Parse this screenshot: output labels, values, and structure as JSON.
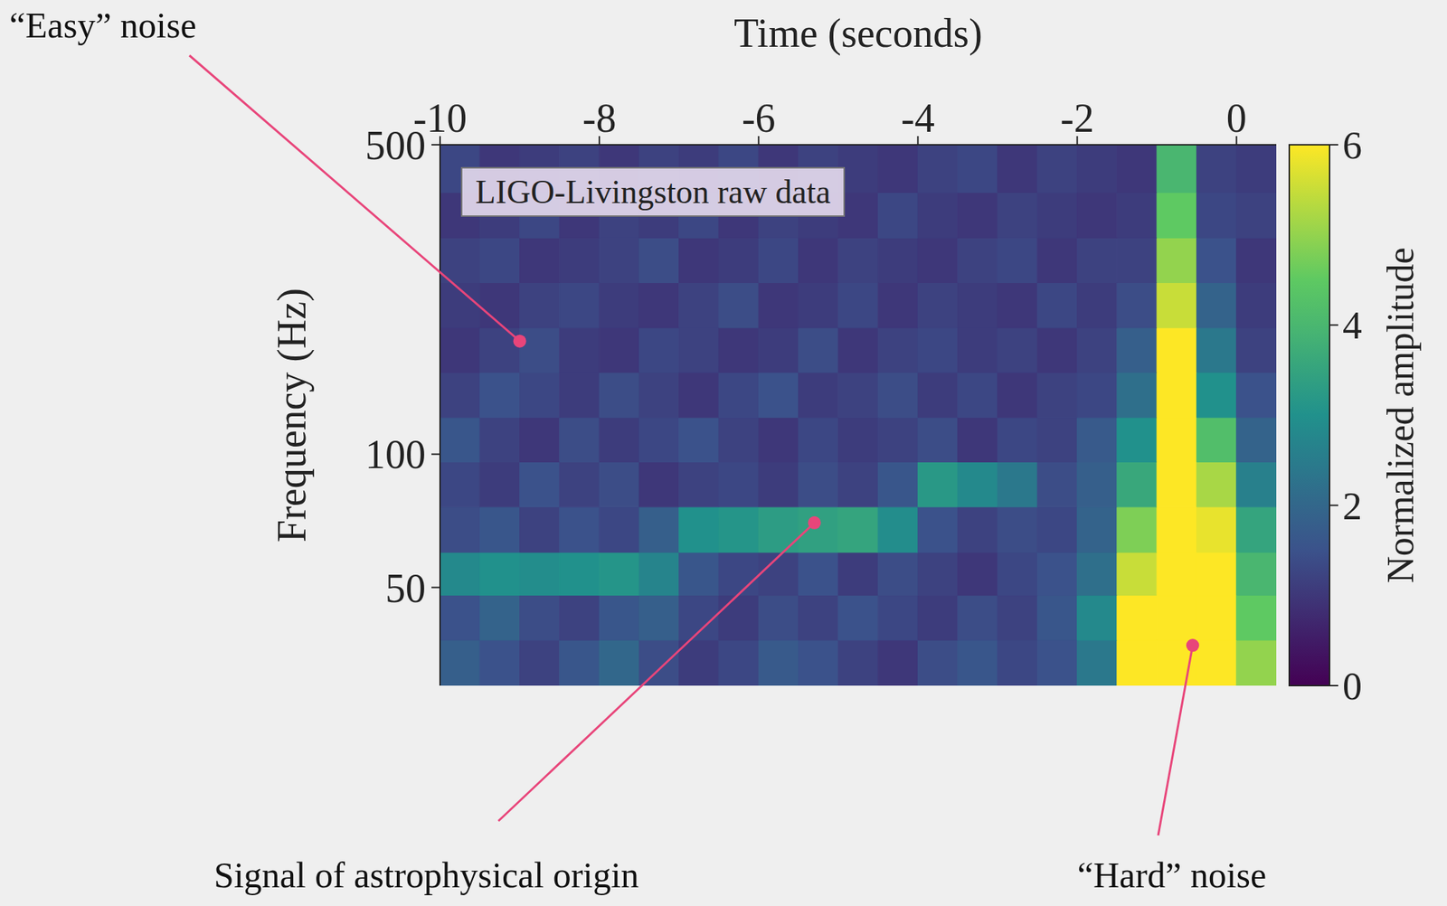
{
  "chart_data": {
    "type": "heatmap",
    "title": "LIGO-Livingston raw data",
    "x_label": "Time (seconds)",
    "y_label": "Frequency (Hz)",
    "log": "y",
    "xlim": [
      -10,
      0.5
    ],
    "ylim": [
      30,
      500
    ],
    "xticks": [
      -10,
      -8,
      -6,
      -4,
      -2,
      0
    ],
    "yticks": [
      50,
      100,
      500
    ],
    "x_bins": [
      -10,
      -9.5,
      -9,
      -8.5,
      -8,
      -7.5,
      -7,
      -6.5,
      -6,
      -5.5,
      -5,
      -4.5,
      -4,
      -3.5,
      -3,
      -2.5,
      -2,
      -1.5,
      -1,
      -0.5,
      0,
      0.5
    ],
    "y_bins": [
      30,
      38,
      48,
      60,
      76,
      96,
      121,
      153,
      193,
      244,
      308,
      390,
      500
    ],
    "cells": [
      [
        1.8,
        1.5,
        1.2,
        1.6,
        2.0,
        1.4,
        1.1,
        1.3,
        1.7,
        1.5,
        1.2,
        1.0,
        1.4,
        1.6,
        1.3,
        1.5,
        2.4,
        6,
        6,
        6,
        5
      ],
      [
        1.5,
        1.9,
        1.4,
        1.2,
        1.6,
        1.8,
        1.3,
        1.1,
        1.4,
        1.2,
        1.5,
        1.3,
        1.1,
        1.4,
        1.2,
        1.6,
        2.8,
        6,
        6,
        6,
        4.5
      ],
      [
        2.8,
        3.0,
        2.9,
        3.0,
        3.1,
        2.7,
        1.6,
        1.3,
        1.2,
        1.5,
        1.1,
        1.4,
        1.2,
        1.0,
        1.3,
        1.5,
        2.2,
        5.5,
        6,
        6,
        4
      ],
      [
        1.4,
        1.6,
        1.2,
        1.5,
        1.3,
        1.8,
        3.0,
        3.1,
        3.3,
        3.4,
        3.5,
        2.9,
        1.5,
        1.2,
        1.4,
        1.3,
        1.9,
        4.8,
        6,
        5.8,
        3.5
      ],
      [
        1.3,
        1.1,
        1.5,
        1.2,
        1.4,
        1.0,
        1.2,
        1.3,
        1.1,
        1.4,
        1.2,
        1.6,
        3.2,
        2.8,
        2.4,
        1.4,
        1.8,
        3.6,
        6,
        5.2,
        2.6
      ],
      [
        1.6,
        1.2,
        1.0,
        1.4,
        1.1,
        1.3,
        1.5,
        1.2,
        1.0,
        1.3,
        1.1,
        1.2,
        1.4,
        1.0,
        1.3,
        1.2,
        1.7,
        3.0,
        6,
        4.2,
        1.9
      ],
      [
        1.2,
        1.5,
        1.3,
        1.1,
        1.4,
        1.2,
        1.0,
        1.3,
        1.5,
        1.1,
        1.2,
        1.4,
        1.1,
        1.3,
        1.0,
        1.2,
        1.3,
        2.2,
        6,
        3.0,
        1.5
      ],
      [
        1.0,
        1.2,
        1.4,
        1.1,
        1.0,
        1.3,
        1.2,
        1.0,
        1.1,
        1.4,
        1.0,
        1.2,
        1.3,
        1.1,
        1.2,
        1.0,
        1.2,
        1.8,
        6,
        2.4,
        1.2
      ],
      [
        1.1,
        1.0,
        1.2,
        1.3,
        1.1,
        1.0,
        1.2,
        1.4,
        1.0,
        1.1,
        1.3,
        1.0,
        1.2,
        1.1,
        1.0,
        1.3,
        1.1,
        1.4,
        5.5,
        1.9,
        1.1
      ],
      [
        1.2,
        1.3,
        1.0,
        1.1,
        1.2,
        1.4,
        1.0,
        1.1,
        1.3,
        1.0,
        1.2,
        1.1,
        1.0,
        1.2,
        1.3,
        1.0,
        1.2,
        1.2,
        5,
        1.5,
        1.0
      ],
      [
        1.0,
        1.1,
        1.3,
        1.0,
        1.2,
        1.1,
        1.3,
        1.0,
        1.2,
        1.1,
        1.0,
        1.3,
        1.1,
        1.0,
        1.2,
        1.1,
        1.0,
        1.1,
        4.5,
        1.3,
        1.2
      ],
      [
        1.3,
        1.0,
        1.1,
        1.2,
        1.0,
        1.2,
        1.1,
        1.3,
        1.0,
        1.2,
        1.1,
        1.0,
        1.2,
        1.3,
        1.0,
        1.2,
        1.1,
        1.0,
        4,
        1.2,
        1.1
      ]
    ],
    "colorbar": {
      "label": "Normalized amplitude",
      "range": [
        0,
        6
      ],
      "ticks": [
        0,
        2,
        4,
        6
      ]
    },
    "annotations": [
      {
        "text": "“Easy” noise",
        "x": -9,
        "y": 180
      },
      {
        "text": "Signal of astrophysical origin",
        "x": -5.3,
        "y": 70
      },
      {
        "text": "“Hard” noise",
        "x": -0.55,
        "y": 37
      }
    ],
    "color": "#e8457a"
  }
}
